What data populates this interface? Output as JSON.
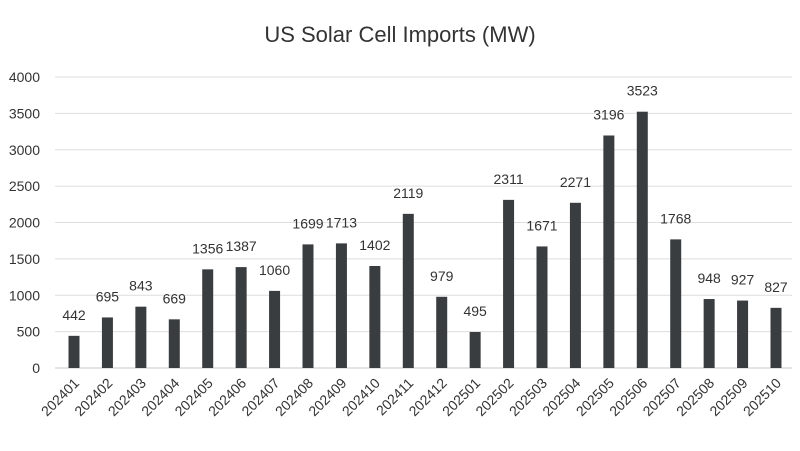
{
  "chart_data": {
    "type": "bar",
    "title": "US Solar Cell Imports (MW)",
    "xlabel": "",
    "ylabel": "",
    "ylim": [
      0,
      4000
    ],
    "yticks": [
      0,
      500,
      1000,
      1500,
      2000,
      2500,
      3000,
      3500,
      4000
    ],
    "grid": true,
    "bar_color": "#3a3d40",
    "categories": [
      "202401",
      "202402",
      "202403",
      "202404",
      "202405",
      "202406",
      "202407",
      "202408",
      "202409",
      "202410",
      "202411",
      "202412",
      "202501",
      "202502",
      "202503",
      "202504",
      "202505",
      "202506",
      "202507",
      "202508",
      "202509",
      "202510"
    ],
    "values": [
      442,
      695,
      843,
      669,
      1356,
      1387,
      1060,
      1699,
      1713,
      1402,
      2119,
      979,
      495,
      2311,
      1671,
      2271,
      3196,
      3523,
      1768,
      948,
      927,
      827
    ]
  }
}
